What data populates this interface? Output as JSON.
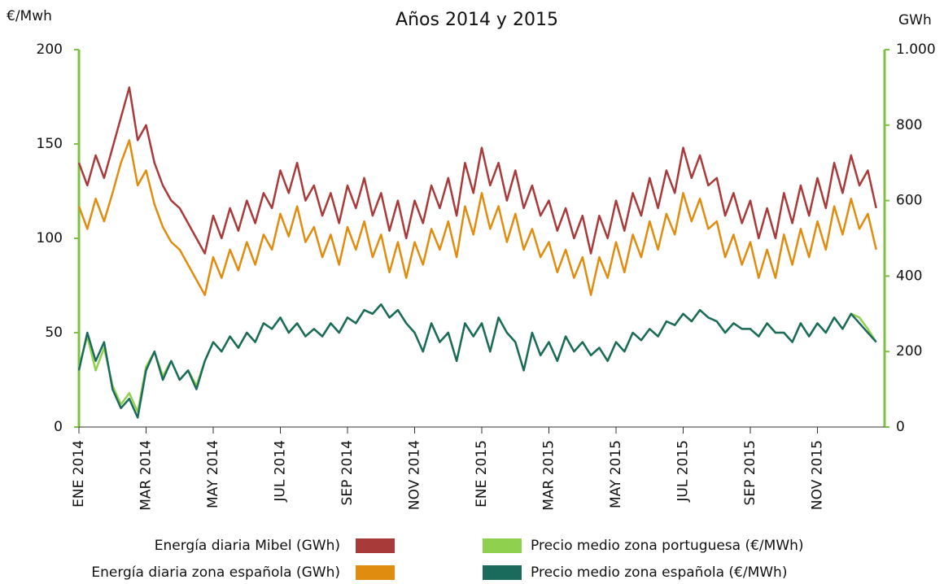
{
  "chart_data": {
    "type": "line",
    "title": "Años 2014 y 2015",
    "y_label": "€/Mwh",
    "y2_label": "GWh",
    "categories": [
      "ENE 2014",
      null,
      null,
      null,
      null,
      null,
      null,
      null,
      "MAR 2014",
      null,
      null,
      null,
      null,
      null,
      null,
      null,
      "MAY 2014",
      null,
      null,
      null,
      null,
      null,
      null,
      null,
      "JUL 2014",
      null,
      null,
      null,
      null,
      null,
      null,
      null,
      "SEP 2014",
      null,
      null,
      null,
      null,
      null,
      null,
      null,
      "NOV 2014",
      null,
      null,
      null,
      null,
      null,
      null,
      null,
      "ENE 2015",
      null,
      null,
      null,
      null,
      null,
      null,
      null,
      "MAR 2015",
      null,
      null,
      null,
      null,
      null,
      null,
      null,
      "MAY 2015",
      null,
      null,
      null,
      null,
      null,
      null,
      null,
      "JUL 2015",
      null,
      null,
      null,
      null,
      null,
      null,
      null,
      "SEP 2015",
      null,
      null,
      null,
      null,
      null,
      null,
      null,
      "NOV 2015",
      null,
      null,
      null,
      null,
      null,
      null,
      null
    ],
    "ylim": [
      0,
      200
    ],
    "yticks": [
      0,
      50,
      100,
      150,
      200
    ],
    "y2lim": [
      0,
      1000
    ],
    "y2ticks": [
      0,
      200,
      400,
      600,
      800,
      {
        "value": 1000,
        "label": "1.000"
      }
    ],
    "axis_color": "#7dc142",
    "series": [
      {
        "name": "Energía diaria Mibel (GWh)",
        "color": "#a83a3a",
        "axis": "y2",
        "values": [
          700,
          640,
          720,
          660,
          740,
          820,
          900,
          760,
          800,
          700,
          640,
          600,
          580,
          540,
          500,
          460,
          560,
          500,
          580,
          520,
          600,
          540,
          620,
          580,
          680,
          620,
          700,
          600,
          640,
          560,
          620,
          540,
          640,
          580,
          660,
          560,
          620,
          520,
          600,
          500,
          600,
          540,
          640,
          580,
          660,
          560,
          700,
          620,
          740,
          640,
          700,
          600,
          680,
          580,
          640,
          560,
          600,
          520,
          580,
          500,
          560,
          460,
          560,
          500,
          600,
          520,
          620,
          560,
          660,
          580,
          680,
          620,
          740,
          660,
          720,
          640,
          660,
          560,
          620,
          540,
          600,
          500,
          580,
          500,
          620,
          540,
          640,
          560,
          660,
          580,
          700,
          620,
          720,
          640,
          680,
          580
        ]
      },
      {
        "name": "Energía diaria zona española (GWh)",
        "color": "#e08c0e",
        "axis": "y2",
        "values": [
          585,
          525,
          605,
          545,
          620,
          700,
          760,
          640,
          680,
          590,
          530,
          490,
          470,
          430,
          390,
          350,
          450,
          395,
          470,
          415,
          490,
          430,
          510,
          470,
          565,
          505,
          585,
          490,
          530,
          450,
          510,
          430,
          530,
          470,
          545,
          450,
          510,
          410,
          490,
          395,
          490,
          430,
          525,
          470,
          545,
          450,
          585,
          510,
          620,
          525,
          585,
          490,
          565,
          470,
          525,
          450,
          490,
          410,
          470,
          395,
          450,
          350,
          450,
          395,
          490,
          410,
          510,
          450,
          545,
          470,
          565,
          510,
          620,
          545,
          605,
          525,
          545,
          450,
          510,
          430,
          490,
          395,
          470,
          395,
          510,
          430,
          525,
          450,
          545,
          470,
          585,
          510,
          605,
          525,
          565,
          470
        ]
      },
      {
        "name": "Precio medio zona portuguesa (€/MWh)",
        "color": "#8fd14f",
        "values": [
          32,
          48,
          30,
          42,
          22,
          12,
          18,
          8,
          32,
          40,
          27,
          35,
          25,
          30,
          22,
          35,
          45,
          40,
          48,
          42,
          50,
          45,
          55,
          52,
          58,
          50,
          55,
          48,
          52,
          48,
          55,
          50,
          58,
          55,
          62,
          60,
          65,
          58,
          62,
          55,
          50,
          40,
          55,
          45,
          50,
          35,
          55,
          48,
          55,
          40,
          58,
          50,
          45,
          30,
          50,
          38,
          45,
          35,
          48,
          40,
          45,
          38,
          42,
          35,
          45,
          40,
          50,
          46,
          52,
          48,
          56,
          54,
          60,
          56,
          62,
          58,
          56,
          50,
          55,
          52,
          52,
          48,
          55,
          50,
          50,
          45,
          55,
          48,
          55,
          50,
          58,
          52,
          60,
          58,
          52,
          45
        ]
      },
      {
        "name": "Precio medio zona española (€/MWh)",
        "color": "#1b6b5c",
        "values": [
          30,
          50,
          35,
          45,
          20,
          10,
          15,
          5,
          30,
          40,
          25,
          35,
          25,
          30,
          20,
          35,
          45,
          40,
          48,
          42,
          50,
          45,
          55,
          52,
          58,
          50,
          55,
          48,
          52,
          48,
          55,
          50,
          58,
          55,
          62,
          60,
          65,
          58,
          62,
          55,
          50,
          40,
          55,
          45,
          50,
          35,
          55,
          48,
          55,
          40,
          58,
          50,
          45,
          30,
          50,
          38,
          45,
          35,
          48,
          40,
          45,
          38,
          42,
          35,
          45,
          40,
          50,
          46,
          52,
          48,
          56,
          54,
          60,
          56,
          62,
          58,
          56,
          50,
          55,
          52,
          52,
          48,
          55,
          50,
          50,
          45,
          55,
          48,
          55,
          50,
          58,
          52,
          60,
          55,
          50,
          45
        ]
      }
    ]
  }
}
